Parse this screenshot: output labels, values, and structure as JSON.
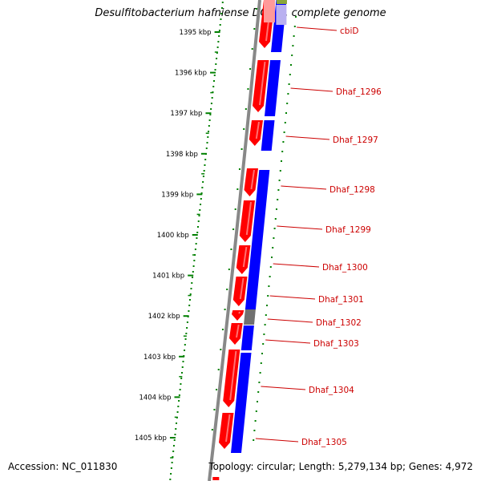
{
  "title": "Desulfitobacterium hafniense DCB-2, complete genome",
  "footer": {
    "accession": "Accession: NC_011830",
    "summary": "Topology: circular; Length: 5,279,134 bp; Genes: 4,972"
  },
  "scale_ticks": [
    "1395 kbp",
    "1396 kbp",
    "1397 kbp",
    "1398 kbp",
    "1399 kbp",
    "1400 kbp",
    "1401 kbp",
    "1402 kbp",
    "1403 kbp",
    "1404 kbp",
    "1405 kbp"
  ],
  "genes": [
    "cbiD",
    "Dhaf_1296",
    "Dhaf_1297",
    "Dhaf_1298",
    "Dhaf_1299",
    "Dhaf_1300",
    "Dhaf_1301",
    "Dhaf_1302",
    "Dhaf_1303",
    "Dhaf_1304",
    "Dhaf_1305"
  ],
  "colors": {
    "cds": "#ff0000",
    "gene": "#0000ff",
    "other": "#707070",
    "backbone": "#888888",
    "scale": "#008000",
    "label": "#cc0000",
    "top_olive": "#8aa63a",
    "top_lavender": "#b9b0f0"
  }
}
